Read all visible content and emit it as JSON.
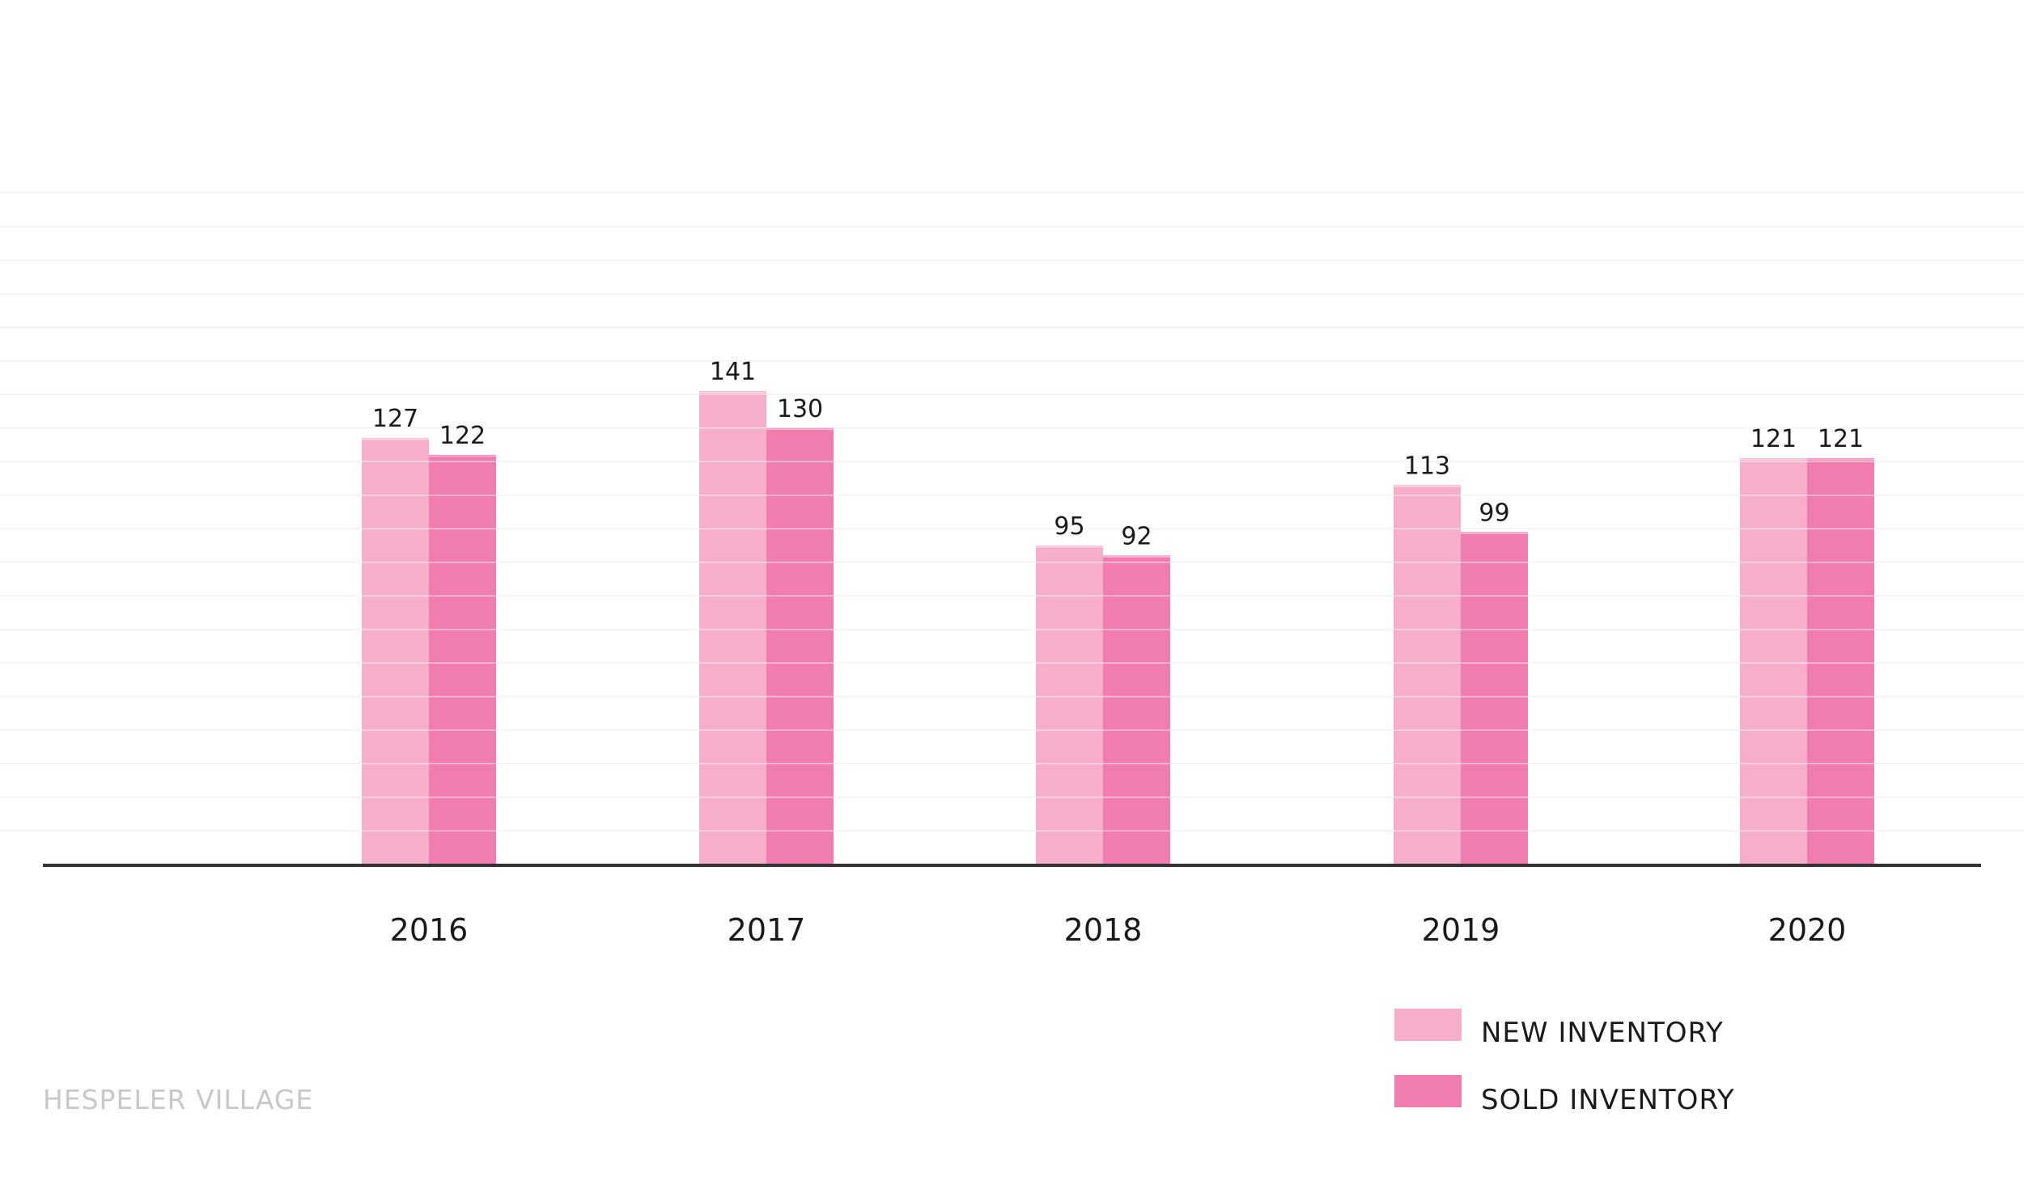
{
  "chart_data": {
    "type": "bar",
    "categories": [
      "2016",
      "2017",
      "2018",
      "2019",
      "2020"
    ],
    "series": [
      {
        "name": "NEW INVENTORY",
        "values": [
          127,
          141,
          95,
          113,
          121
        ],
        "color": "#f6aecb"
      },
      {
        "name": "SOLD INVENTORY",
        "values": [
          122,
          130,
          92,
          99,
          121
        ],
        "color": "#f07cb0"
      }
    ],
    "ylim": [
      0,
      200
    ],
    "grid": true,
    "legend_position": "bottom-right"
  },
  "footer": {
    "label": "HESPELER VILLAGE"
  },
  "colors": {
    "axis": "#333333",
    "grid": "#f2f2f2",
    "bar_inner_line": "#ffffff"
  }
}
